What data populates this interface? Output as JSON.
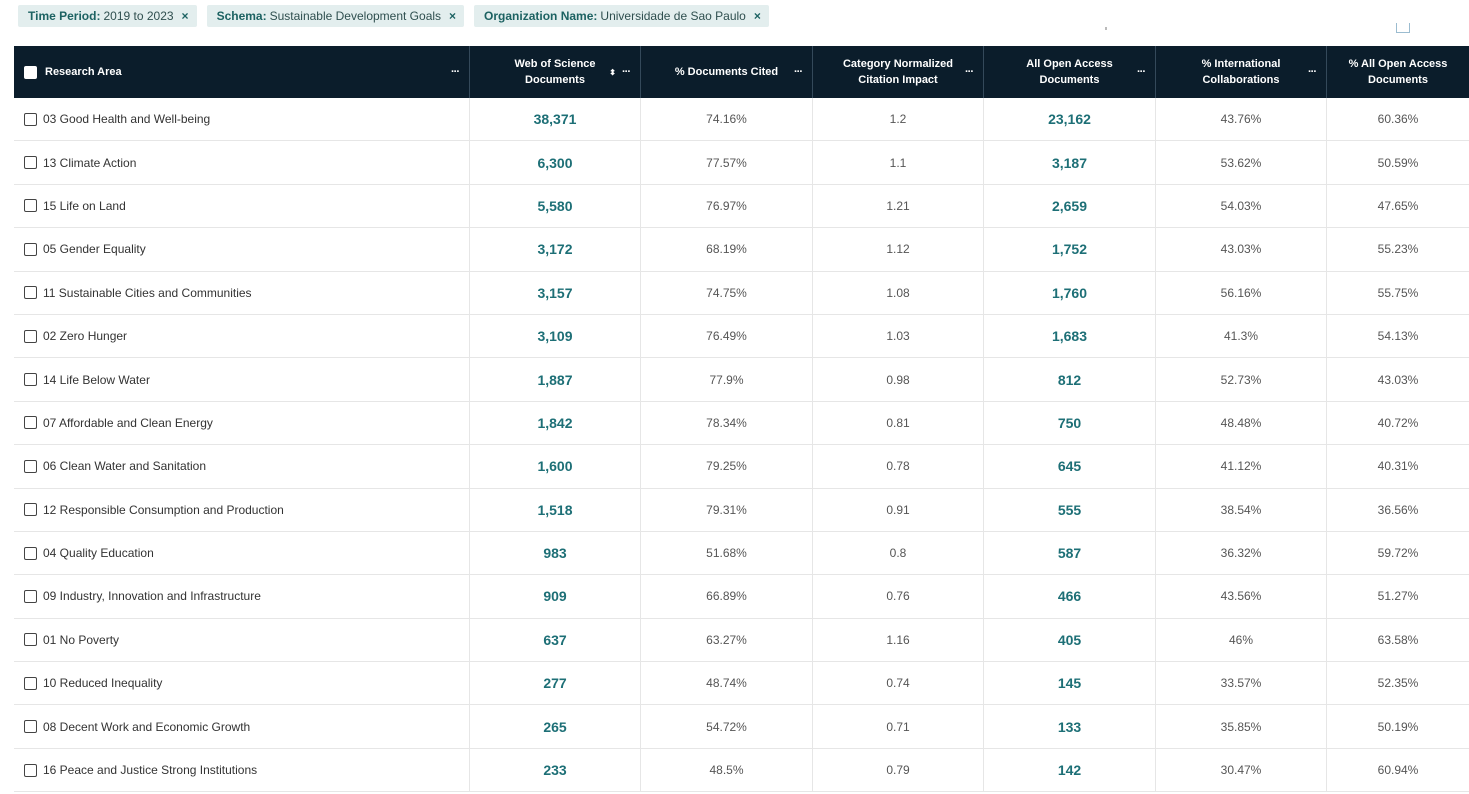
{
  "filters": [
    {
      "key": "Time Period:",
      "value": "2019 to 2023"
    },
    {
      "key": "Schema:",
      "value": "Sustainable Development Goals"
    },
    {
      "key": "Organization Name:",
      "value": "Universidade de Sao Paulo"
    }
  ],
  "close_glyph": "×",
  "table": {
    "columns": [
      "Research Area",
      "Web of Science Documents",
      "% Documents Cited",
      "Category Normalized Citation Impact",
      "All Open Access Documents",
      "% International Collaborations",
      "% All Open Access Documents"
    ],
    "more_glyph": "···",
    "sort_glyph": "⬍",
    "rows": [
      [
        "03 Good Health and Well-being",
        "38,371",
        "74.16%",
        "1.2",
        "23,162",
        "43.76%",
        "60.36%"
      ],
      [
        "13 Climate Action",
        "6,300",
        "77.57%",
        "1.1",
        "3,187",
        "53.62%",
        "50.59%"
      ],
      [
        "15 Life on Land",
        "5,580",
        "76.97%",
        "1.21",
        "2,659",
        "54.03%",
        "47.65%"
      ],
      [
        "05 Gender Equality",
        "3,172",
        "68.19%",
        "1.12",
        "1,752",
        "43.03%",
        "55.23%"
      ],
      [
        "11 Sustainable Cities and Communities",
        "3,157",
        "74.75%",
        "1.08",
        "1,760",
        "56.16%",
        "55.75%"
      ],
      [
        "02 Zero Hunger",
        "3,109",
        "76.49%",
        "1.03",
        "1,683",
        "41.3%",
        "54.13%"
      ],
      [
        "14 Life Below Water",
        "1,887",
        "77.9%",
        "0.98",
        "812",
        "52.73%",
        "43.03%"
      ],
      [
        "07 Affordable and Clean Energy",
        "1,842",
        "78.34%",
        "0.81",
        "750",
        "48.48%",
        "40.72%"
      ],
      [
        "06 Clean Water and Sanitation",
        "1,600",
        "79.25%",
        "0.78",
        "645",
        "41.12%",
        "40.31%"
      ],
      [
        "12 Responsible Consumption and Production",
        "1,518",
        "79.31%",
        "0.91",
        "555",
        "38.54%",
        "36.56%"
      ],
      [
        "04 Quality Education",
        "983",
        "51.68%",
        "0.8",
        "587",
        "36.32%",
        "59.72%"
      ],
      [
        "09 Industry, Innovation and Infrastructure",
        "909",
        "66.89%",
        "0.76",
        "466",
        "43.56%",
        "51.27%"
      ],
      [
        "01 No Poverty",
        "637",
        "63.27%",
        "1.16",
        "405",
        "46%",
        "63.58%"
      ],
      [
        "10 Reduced Inequality",
        "277",
        "48.74%",
        "0.74",
        "145",
        "33.57%",
        "52.35%"
      ],
      [
        "08 Decent Work and Economic Growth",
        "265",
        "54.72%",
        "0.71",
        "133",
        "35.85%",
        "50.19%"
      ],
      [
        "16 Peace and Justice Strong Institutions",
        "233",
        "48.5%",
        "0.79",
        "142",
        "30.47%",
        "60.94%"
      ]
    ]
  },
  "colors": {
    "header_bg": "#0b1d2b",
    "link": "#1d6f76",
    "chip_bg": "#e3eeee"
  }
}
